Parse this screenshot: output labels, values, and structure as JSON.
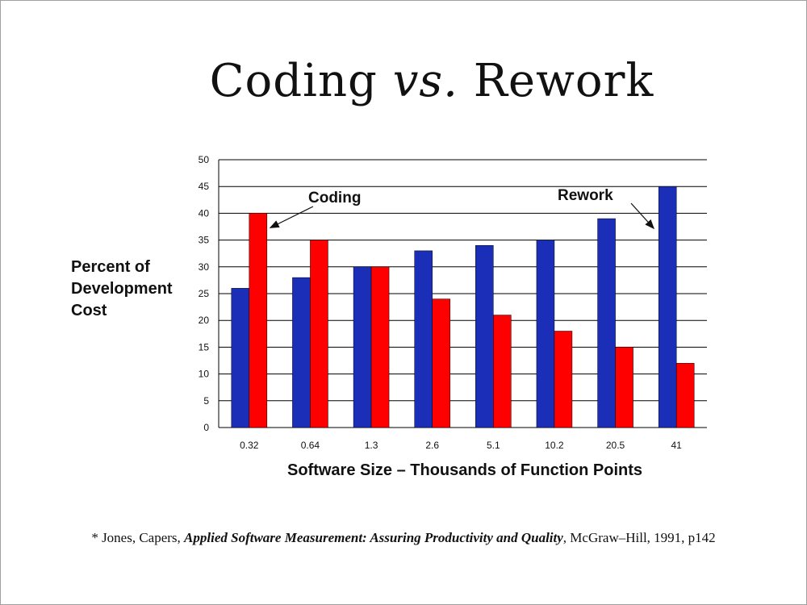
{
  "title": {
    "main": "Coding",
    "italic": "vs.",
    "rest": "Rework"
  },
  "y_axis_label_lines": [
    "Percent of",
    "Development",
    "Cost"
  ],
  "x_axis_label": "Software Size – Thousands of Function Points",
  "citation": {
    "prefix": "* Jones, Capers",
    "book": "Applied Software Measurement: Assuring Productivity and Quality",
    "suffix": ", McGraw–Hill, 1991, p142",
    "sep": ", "
  },
  "chart_data": {
    "type": "bar",
    "categories": [
      "0.32",
      "0.64",
      "1.3",
      "2.6",
      "5.1",
      "10.2",
      "20.5",
      "41"
    ],
    "series": [
      {
        "name": "Rework",
        "color": "#1a2eb8",
        "values": [
          26,
          28,
          30,
          33,
          34,
          35,
          39,
          45
        ]
      },
      {
        "name": "Coding",
        "color": "#ff0000",
        "values": [
          40,
          35,
          30,
          24,
          21,
          18,
          15,
          12
        ]
      }
    ],
    "ylim": [
      0,
      50
    ],
    "yticks": [
      0,
      5,
      10,
      15,
      20,
      25,
      30,
      35,
      40,
      45,
      50
    ],
    "grid": true,
    "xlabel": "Software Size – Thousands of Function Points",
    "ylabel": "Percent of Development Cost",
    "annotations": [
      {
        "text": "Coding",
        "points_to_series": "Coding",
        "category": "0.32"
      },
      {
        "text": "Rework",
        "points_to_series": "Rework",
        "category": "41"
      }
    ]
  }
}
